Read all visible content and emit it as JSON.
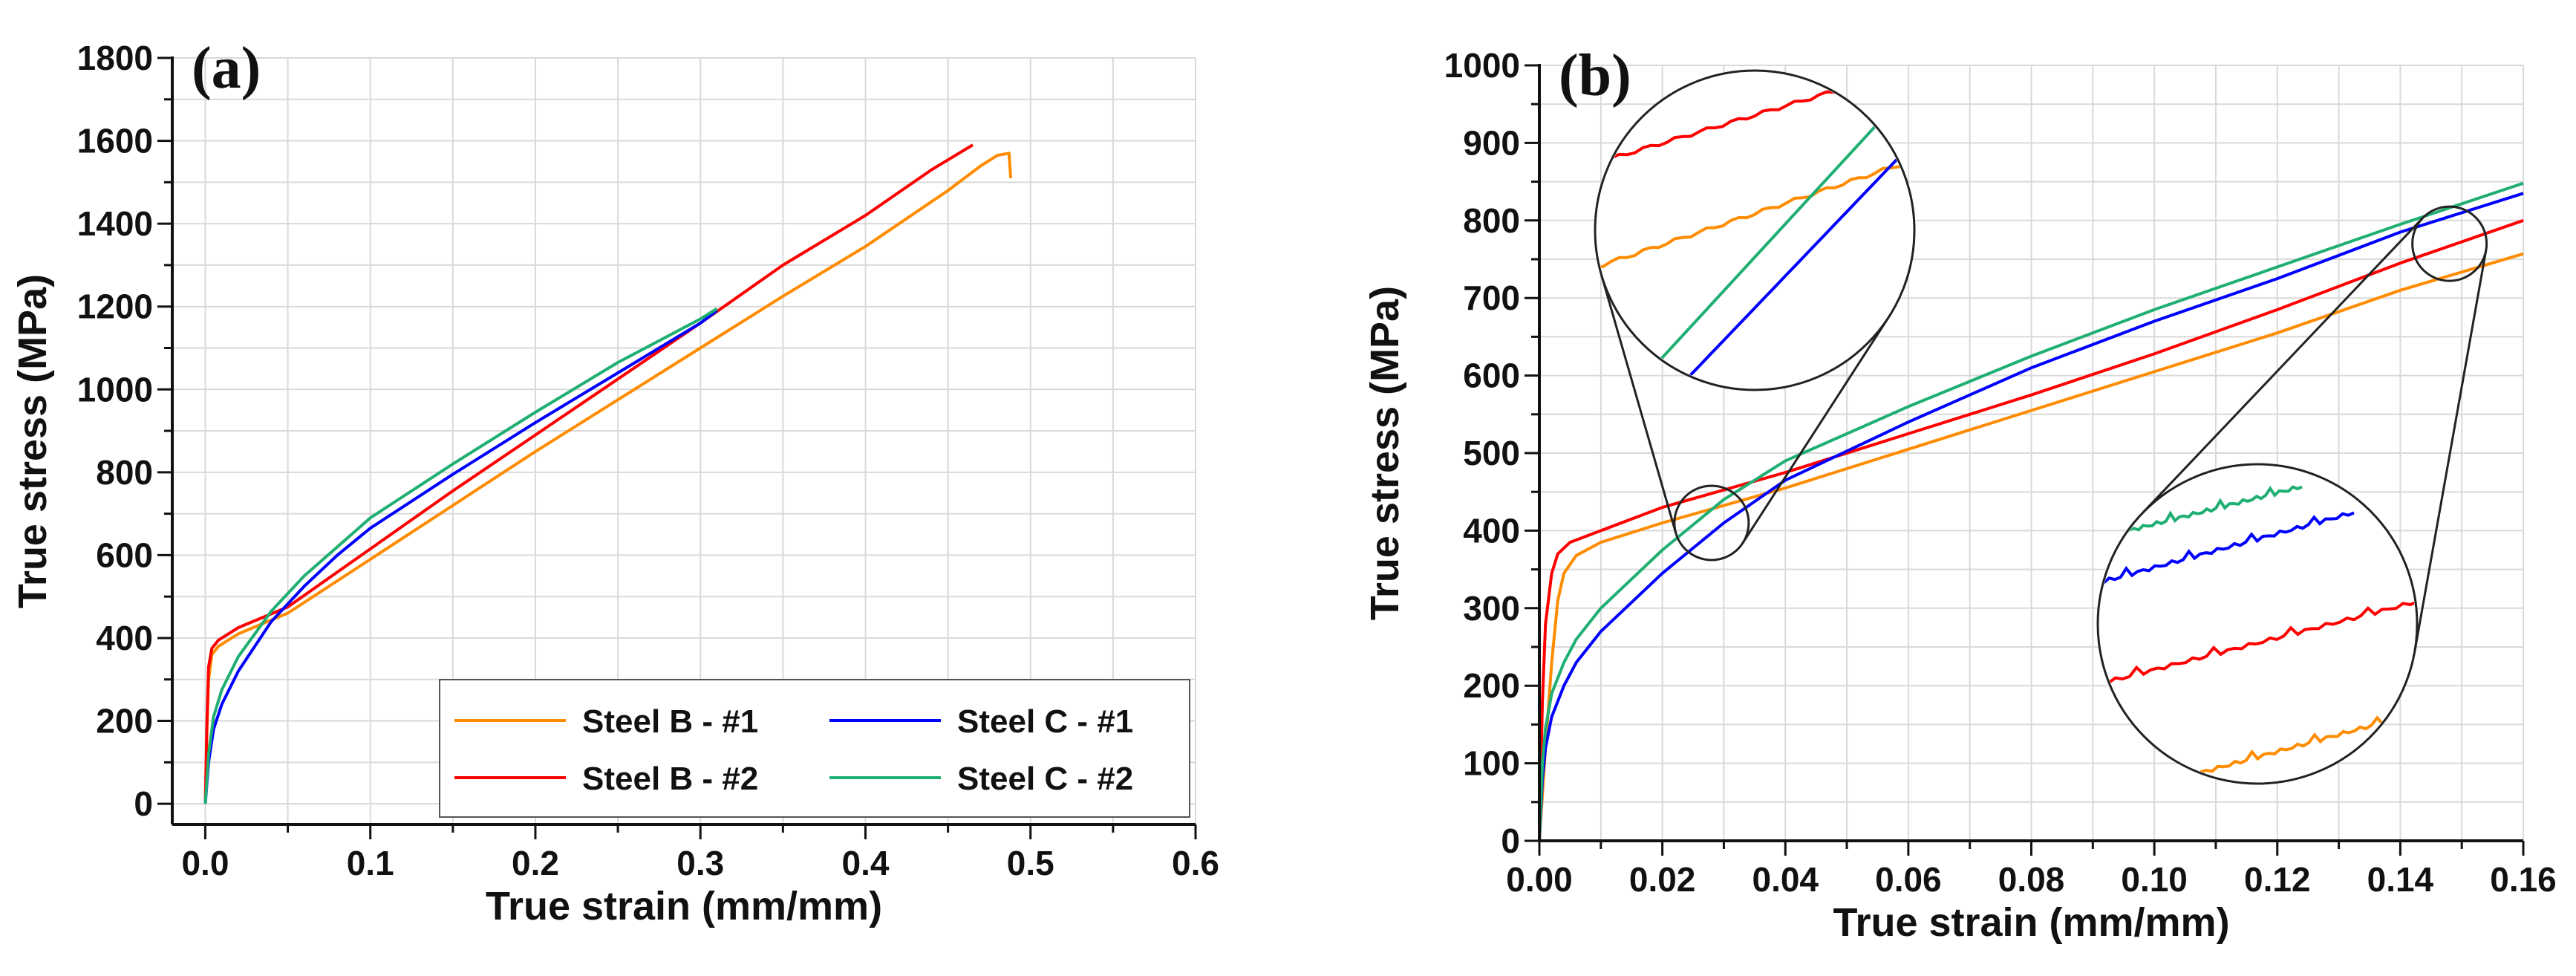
{
  "colors": {
    "steel_b_1": "#FF8C00",
    "steel_b_2": "#FF0000",
    "steel_c_1": "#0000FF",
    "steel_c_2": "#1FAF72",
    "grid": "#d9d9d9",
    "axis": "#111111"
  },
  "chart_data": [
    {
      "type": "line",
      "panel_label": "(a)",
      "xlabel": "True strain (mm/mm)",
      "ylabel": "True stress (MPa)",
      "xlim": [
        -0.02,
        0.6
      ],
      "ylim": [
        -50,
        1800
      ],
      "xticks": [
        0.0,
        0.1,
        0.2,
        0.3,
        0.4,
        0.5,
        0.6
      ],
      "xtick_labels": [
        "0.0",
        "0.1",
        "0.2",
        "0.3",
        "0.4",
        "0.5",
        "0.6"
      ],
      "yticks": [
        0,
        200,
        400,
        600,
        800,
        1000,
        1200,
        1400,
        1600,
        1800
      ],
      "ytick_labels": [
        "0",
        "200",
        "400",
        "600",
        "800",
        "1000",
        "1200",
        "1400",
        "1600",
        "1800"
      ],
      "grid": true,
      "legend_position": "bottom-right",
      "legend": [
        "Steel B - #1",
        "Steel B - #2",
        "Steel C - #1",
        "Steel C - #2"
      ],
      "series": [
        {
          "name": "Steel B - #1",
          "color_key": "steel_b_1",
          "x": [
            0.0,
            0.001,
            0.002,
            0.004,
            0.008,
            0.02,
            0.05,
            0.1,
            0.15,
            0.2,
            0.25,
            0.3,
            0.35,
            0.4,
            0.45,
            0.47,
            0.48,
            0.487,
            0.488
          ],
          "y": [
            0,
            180,
            300,
            360,
            380,
            410,
            460,
            590,
            720,
            850,
            975,
            1100,
            1225,
            1345,
            1480,
            1540,
            1565,
            1570,
            1510
          ]
        },
        {
          "name": "Steel B - #2",
          "color_key": "steel_b_2",
          "x": [
            0.0,
            0.001,
            0.002,
            0.004,
            0.008,
            0.02,
            0.05,
            0.1,
            0.15,
            0.2,
            0.25,
            0.3,
            0.35,
            0.4,
            0.44,
            0.465
          ],
          "y": [
            0,
            200,
            330,
            375,
            395,
            425,
            475,
            615,
            755,
            890,
            1025,
            1160,
            1300,
            1420,
            1530,
            1590
          ]
        },
        {
          "name": "Steel C - #1",
          "color_key": "steel_c_1",
          "x": [
            0.0,
            0.002,
            0.005,
            0.01,
            0.02,
            0.04,
            0.06,
            0.08,
            0.1,
            0.15,
            0.2,
            0.25,
            0.3,
            0.31
          ],
          "y": [
            0,
            100,
            180,
            240,
            320,
            440,
            525,
            600,
            665,
            795,
            920,
            1040,
            1160,
            1190
          ]
        },
        {
          "name": "Steel C - #2",
          "color_key": "steel_c_2",
          "x": [
            0.0,
            0.002,
            0.005,
            0.01,
            0.02,
            0.04,
            0.06,
            0.08,
            0.1,
            0.15,
            0.2,
            0.25,
            0.3,
            0.31
          ],
          "y": [
            0,
            120,
            210,
            275,
            355,
            465,
            550,
            620,
            690,
            820,
            945,
            1065,
            1170,
            1195
          ]
        }
      ]
    },
    {
      "type": "line",
      "panel_label": "(b)",
      "xlabel": "True strain (mm/mm)",
      "ylabel": "True stress (MPa)",
      "xlim": [
        0,
        0.16
      ],
      "ylim": [
        0,
        1000
      ],
      "xticks": [
        0.0,
        0.02,
        0.04,
        0.06,
        0.08,
        0.1,
        0.12,
        0.14,
        0.16
      ],
      "xtick_labels": [
        "0.00",
        "0.02",
        "0.04",
        "0.06",
        "0.08",
        "0.10",
        "0.12",
        "0.14",
        "0.16"
      ],
      "yticks": [
        0,
        100,
        200,
        300,
        400,
        500,
        600,
        700,
        800,
        900,
        1000
      ],
      "ytick_labels": [
        "0",
        "100",
        "200",
        "300",
        "400",
        "500",
        "600",
        "700",
        "800",
        "900",
        "1000"
      ],
      "grid": true,
      "annotations": [
        "zoom circle near strain 0.028, stress 410 MPa",
        "zoom circle near strain 0.148, stress 770 MPa"
      ],
      "series": [
        {
          "name": "Steel B - #1",
          "color_key": "steel_b_1",
          "x": [
            0.0,
            0.001,
            0.002,
            0.003,
            0.004,
            0.006,
            0.01,
            0.02,
            0.04,
            0.06,
            0.08,
            0.1,
            0.12,
            0.14,
            0.16
          ],
          "y": [
            0,
            120,
            230,
            310,
            345,
            368,
            385,
            410,
            455,
            505,
            555,
            605,
            655,
            710,
            757
          ]
        },
        {
          "name": "Steel B - #2",
          "color_key": "steel_b_2",
          "x": [
            0.0,
            0.0005,
            0.001,
            0.002,
            0.003,
            0.005,
            0.01,
            0.02,
            0.04,
            0.06,
            0.08,
            0.1,
            0.12,
            0.14,
            0.16
          ],
          "y": [
            0,
            180,
            280,
            345,
            370,
            385,
            400,
            430,
            475,
            525,
            575,
            628,
            685,
            745,
            800
          ]
        },
        {
          "name": "Steel C - #1",
          "color_key": "steel_c_1",
          "x": [
            0.0,
            0.0005,
            0.001,
            0.002,
            0.004,
            0.006,
            0.01,
            0.02,
            0.03,
            0.04,
            0.06,
            0.08,
            0.1,
            0.12,
            0.14,
            0.16
          ],
          "y": [
            0,
            80,
            120,
            160,
            200,
            230,
            270,
            345,
            410,
            465,
            540,
            610,
            670,
            725,
            785,
            835
          ]
        },
        {
          "name": "Steel C - #2",
          "color_key": "steel_c_2",
          "x": [
            0.0,
            0.0005,
            0.001,
            0.002,
            0.004,
            0.006,
            0.01,
            0.02,
            0.03,
            0.04,
            0.06,
            0.08,
            0.1,
            0.12,
            0.14,
            0.16
          ],
          "y": [
            0,
            100,
            145,
            190,
            230,
            260,
            300,
            375,
            440,
            490,
            560,
            625,
            685,
            740,
            795,
            848
          ]
        }
      ]
    }
  ]
}
